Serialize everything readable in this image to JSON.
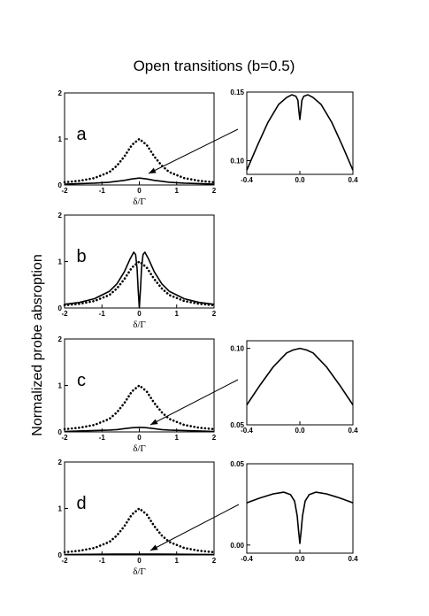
{
  "figure": {
    "title": "Open transitions (b=0.5)",
    "ylabel": "Normalized probe absroption",
    "xlabel": "δ/Γ",
    "colors": {
      "line": "#000000",
      "background": "#ffffff"
    }
  },
  "chart_data": [
    {
      "type": "line",
      "panel": "a",
      "label": "a",
      "xlim": [
        -2,
        2
      ],
      "ylim": [
        0,
        2
      ],
      "xticks": [
        "-2",
        "-1",
        "0",
        "1",
        "2"
      ],
      "yticks": [
        "0",
        "1",
        "2"
      ],
      "xlabel": "δ/Γ",
      "series": [
        {
          "style": "dotted",
          "x": [
            -2,
            -1.6,
            -1.2,
            -0.8,
            -0.6,
            -0.4,
            -0.2,
            0,
            0.2,
            0.4,
            0.6,
            0.8,
            1.2,
            1.6,
            2
          ],
          "y": [
            0.06,
            0.09,
            0.15,
            0.28,
            0.42,
            0.62,
            0.87,
            1.0,
            0.87,
            0.62,
            0.42,
            0.28,
            0.15,
            0.09,
            0.06
          ]
        },
        {
          "style": "solid",
          "x": [
            -2,
            -1.6,
            -1.2,
            -0.8,
            -0.6,
            -0.4,
            -0.2,
            0,
            0.2,
            0.4,
            0.6,
            0.8,
            1.2,
            1.6,
            2
          ],
          "y": [
            0.02,
            0.03,
            0.04,
            0.06,
            0.08,
            0.1,
            0.13,
            0.15,
            0.13,
            0.1,
            0.08,
            0.06,
            0.04,
            0.03,
            0.02
          ]
        }
      ],
      "inset": {
        "xlim": [
          -0.4,
          0.4
        ],
        "ylim": [
          0.09,
          0.15
        ],
        "xticks": [
          "-0.4",
          "0.0",
          "0.4"
        ],
        "yticks": [
          "0.10",
          "0.15"
        ],
        "series": [
          {
            "style": "solid",
            "x": [
              -0.4,
              -0.32,
              -0.24,
              -0.16,
              -0.1,
              -0.06,
              -0.03,
              -0.015,
              -0.008,
              0,
              0.008,
              0.015,
              0.03,
              0.06,
              0.1,
              0.16,
              0.24,
              0.32,
              0.4
            ],
            "y": [
              0.093,
              0.111,
              0.128,
              0.141,
              0.146,
              0.148,
              0.147,
              0.144,
              0.137,
              0.13,
              0.137,
              0.144,
              0.147,
              0.148,
              0.146,
              0.141,
              0.128,
              0.111,
              0.093
            ]
          }
        ]
      }
    },
    {
      "type": "line",
      "panel": "b",
      "label": "b",
      "xlim": [
        -2,
        2
      ],
      "ylim": [
        0,
        2
      ],
      "xticks": [
        "-2",
        "-1",
        "0",
        "1",
        "2"
      ],
      "yticks": [
        "0",
        "1",
        "2"
      ],
      "xlabel": "δ/Γ",
      "series": [
        {
          "style": "dotted",
          "x": [
            -2,
            -1.6,
            -1.2,
            -0.8,
            -0.6,
            -0.4,
            -0.2,
            0,
            0.2,
            0.4,
            0.6,
            0.8,
            1.2,
            1.6,
            2
          ],
          "y": [
            0.06,
            0.09,
            0.15,
            0.28,
            0.42,
            0.62,
            0.87,
            1.0,
            0.87,
            0.62,
            0.42,
            0.28,
            0.15,
            0.09,
            0.06
          ]
        },
        {
          "style": "solid",
          "x": [
            -2,
            -1.6,
            -1.2,
            -0.8,
            -0.6,
            -0.4,
            -0.25,
            -0.15,
            -0.1,
            -0.06,
            -0.03,
            0,
            0.03,
            0.06,
            0.1,
            0.15,
            0.25,
            0.4,
            0.6,
            0.8,
            1.2,
            1.6,
            2
          ],
          "y": [
            0.08,
            0.12,
            0.2,
            0.36,
            0.52,
            0.78,
            1.05,
            1.2,
            1.15,
            0.85,
            0.4,
            0.0,
            0.4,
            0.85,
            1.15,
            1.2,
            1.05,
            0.78,
            0.52,
            0.36,
            0.2,
            0.12,
            0.08
          ]
        }
      ]
    },
    {
      "type": "line",
      "panel": "c",
      "label": "c",
      "xlim": [
        -2,
        2
      ],
      "ylim": [
        0,
        2
      ],
      "xticks": [
        "-2",
        "-1",
        "0",
        "1",
        "2"
      ],
      "yticks": [
        "0",
        "1",
        "2"
      ],
      "xlabel": "δ/Γ",
      "series": [
        {
          "style": "dotted",
          "x": [
            -2,
            -1.6,
            -1.2,
            -0.8,
            -0.6,
            -0.4,
            -0.2,
            0,
            0.2,
            0.4,
            0.6,
            0.8,
            1.2,
            1.6,
            2
          ],
          "y": [
            0.06,
            0.09,
            0.15,
            0.28,
            0.42,
            0.62,
            0.87,
            1.0,
            0.87,
            0.62,
            0.42,
            0.28,
            0.15,
            0.09,
            0.06
          ]
        },
        {
          "style": "solid",
          "x": [
            -2,
            -1.6,
            -1.2,
            -0.8,
            -0.6,
            -0.4,
            -0.2,
            0,
            0.2,
            0.4,
            0.6,
            0.8,
            1.2,
            1.6,
            2
          ],
          "y": [
            0.01,
            0.02,
            0.03,
            0.04,
            0.05,
            0.07,
            0.09,
            0.1,
            0.09,
            0.07,
            0.05,
            0.04,
            0.03,
            0.02,
            0.01
          ]
        }
      ],
      "inset": {
        "xlim": [
          -0.4,
          0.4
        ],
        "ylim": [
          0.05,
          0.105
        ],
        "xticks": [
          "-0.4",
          "0.0",
          "0.4"
        ],
        "yticks": [
          "0.05",
          "0.10"
        ],
        "series": [
          {
            "style": "solid",
            "x": [
              -0.4,
              -0.3,
              -0.2,
              -0.1,
              -0.05,
              0,
              0.05,
              0.1,
              0.2,
              0.3,
              0.4
            ],
            "y": [
              0.063,
              0.076,
              0.088,
              0.097,
              0.099,
              0.1,
              0.099,
              0.097,
              0.088,
              0.076,
              0.063
            ]
          }
        ]
      }
    },
    {
      "type": "line",
      "panel": "d",
      "label": "d",
      "xlim": [
        -2,
        2
      ],
      "ylim": [
        0,
        2
      ],
      "xticks": [
        "-2",
        "-1",
        "0",
        "1",
        "2"
      ],
      "yticks": [
        "0",
        "1",
        "2"
      ],
      "xlabel": "δ/Γ",
      "series": [
        {
          "style": "dotted",
          "x": [
            -2,
            -1.6,
            -1.2,
            -0.8,
            -0.6,
            -0.4,
            -0.2,
            0,
            0.2,
            0.4,
            0.6,
            0.8,
            1.2,
            1.6,
            2
          ],
          "y": [
            0.06,
            0.09,
            0.15,
            0.28,
            0.42,
            0.62,
            0.87,
            1.0,
            0.87,
            0.62,
            0.42,
            0.28,
            0.15,
            0.09,
            0.06
          ]
        },
        {
          "style": "solid",
          "x": [
            -2,
            -1,
            -0.5,
            0,
            0.5,
            1,
            2
          ],
          "y": [
            0.01,
            0.015,
            0.02,
            0.02,
            0.02,
            0.015,
            0.01
          ]
        }
      ],
      "inset": {
        "xlim": [
          -0.4,
          0.4
        ],
        "ylim": [
          -0.005,
          0.05
        ],
        "xticks": [
          "-0.4",
          "0.0",
          "0.4"
        ],
        "yticks": [
          "0.00",
          "0.05"
        ],
        "series": [
          {
            "style": "solid",
            "x": [
              -0.4,
              -0.3,
              -0.2,
              -0.12,
              -0.07,
              -0.04,
              -0.02,
              -0.01,
              0,
              0.01,
              0.02,
              0.04,
              0.07,
              0.12,
              0.2,
              0.3,
              0.4
            ],
            "y": [
              0.026,
              0.029,
              0.0315,
              0.0325,
              0.031,
              0.027,
              0.018,
              0.009,
              0.001,
              0.009,
              0.018,
              0.027,
              0.031,
              0.0325,
              0.0315,
              0.029,
              0.026
            ]
          }
        ]
      }
    }
  ]
}
